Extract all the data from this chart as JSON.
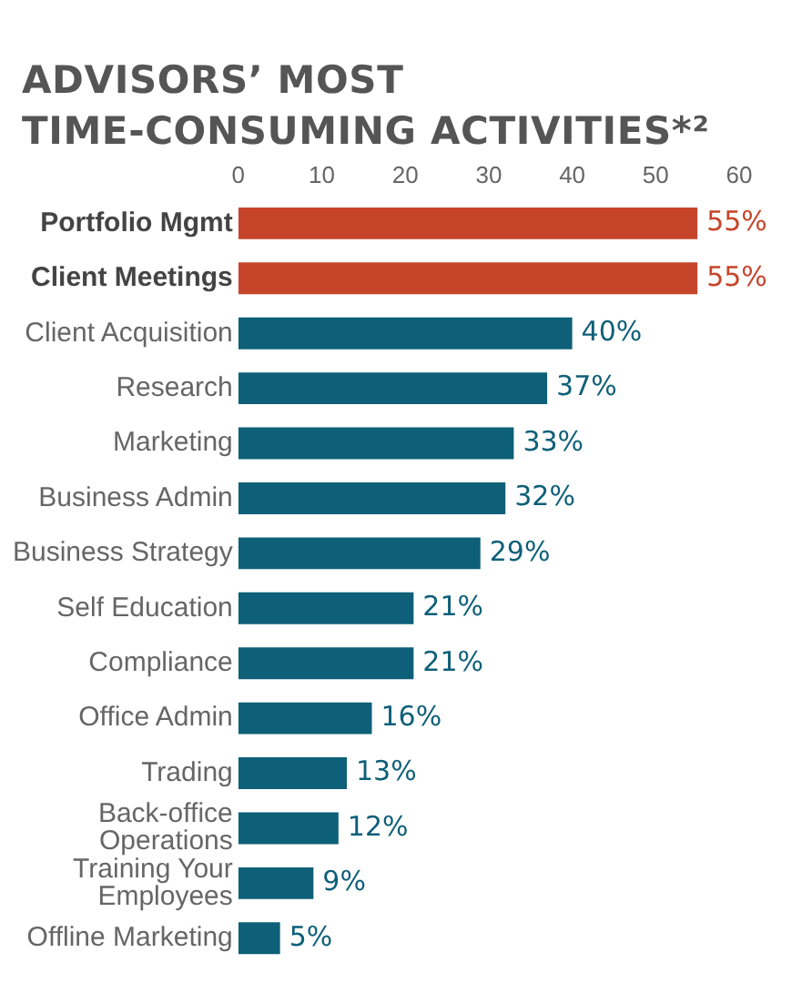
{
  "chart_data": {
    "type": "bar",
    "orientation": "horizontal",
    "title": "ADVISORS’ MOST\nTIME-CONSUMING ACTIVITIES*²",
    "categories": [
      "Portfolio Mgmt",
      "Client Meetings",
      "Client Acquisition",
      "Research",
      "Marketing",
      "Business Admin",
      "Business Strategy",
      "Self Education",
      "Compliance",
      "Office Admin",
      "Trading",
      "Back-office Operations",
      "Training Your Employees",
      "Offline Marketing"
    ],
    "values": [
      55,
      55,
      40,
      37,
      33,
      32,
      29,
      21,
      21,
      16,
      13,
      12,
      9,
      5
    ],
    "colors": [
      "#c6452a",
      "#c6452a",
      "#0e5f78",
      "#0e5f78",
      "#0e5f78",
      "#0e5f78",
      "#0e5f78",
      "#0e5f78",
      "#0e5f78",
      "#0e5f78",
      "#0e5f78",
      "#0e5f78",
      "#0e5f78",
      "#0e5f78"
    ],
    "value_labels": [
      "55%",
      "55%",
      "40%",
      "37%",
      "33%",
      "32%",
      "29%",
      "21%",
      "21%",
      "16%",
      "13%",
      "12%",
      "9%",
      "5%"
    ],
    "xlim": [
      0,
      60
    ],
    "xticks": [
      0,
      10,
      20,
      30,
      40,
      50,
      60
    ],
    "grid": false,
    "legend": false
  }
}
